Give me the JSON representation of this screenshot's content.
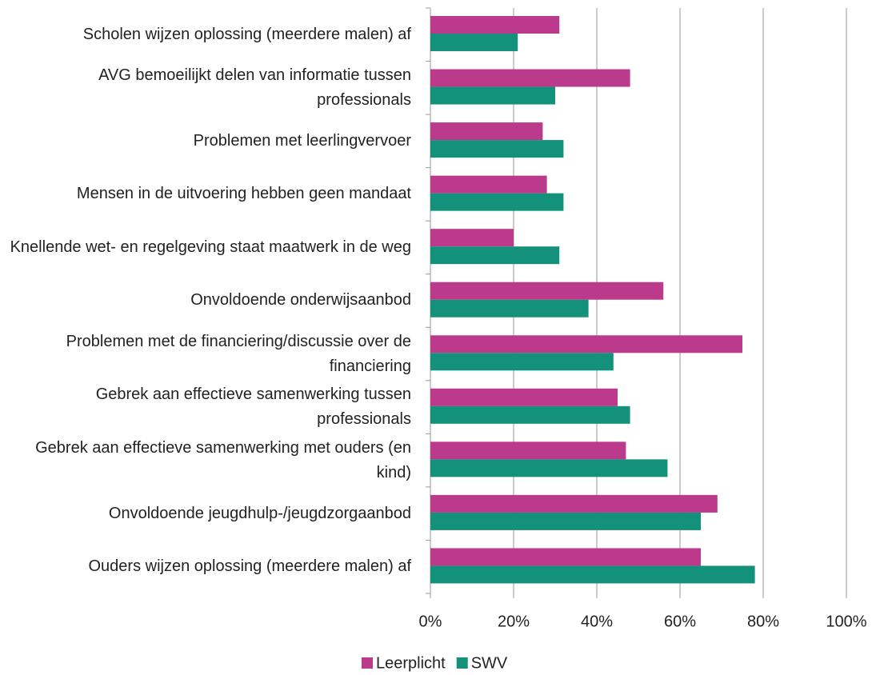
{
  "chart_data": {
    "type": "bar",
    "orientation": "horizontal",
    "categories": [
      "Scholen wijzen oplossing (meerdere malen) af",
      "AVG bemoeilijkt delen van informatie tussen professionals",
      "Problemen met leerlingvervoer",
      "Mensen in de uitvoering hebben geen mandaat",
      "Knellende wet- en regelgeving staat maatwerk in de weg",
      "Onvoldoende onderwijsaanbod",
      "Problemen met de financiering/discussie over de financiering",
      "Gebrek aan effectieve samenwerking tussen professionals",
      "Gebrek aan effectieve samenwerking met ouders (en kind)",
      "Onvoldoende jeugdhulp-/jeugdzorgaanbod",
      "Ouders wijzen oplossing (meerdere malen) af"
    ],
    "series": [
      {
        "name": "Leerplicht",
        "color": "#bb3a8c",
        "values": [
          31,
          48,
          27,
          28,
          20,
          56,
          75,
          45,
          47,
          69,
          65
        ]
      },
      {
        "name": "SWV",
        "color": "#14917a",
        "values": [
          21,
          30,
          32,
          32,
          31,
          38,
          44,
          48,
          57,
          65,
          78
        ]
      }
    ],
    "xlim": [
      0,
      100
    ],
    "xticks": [
      {
        "value": 0,
        "label": "0%"
      },
      {
        "value": 20,
        "label": "20%"
      },
      {
        "value": 40,
        "label": "40%"
      },
      {
        "value": 60,
        "label": "60%"
      },
      {
        "value": 80,
        "label": "80%"
      },
      {
        "value": 100,
        "label": "100%"
      }
    ],
    "grid": true,
    "legend": "bottom"
  }
}
